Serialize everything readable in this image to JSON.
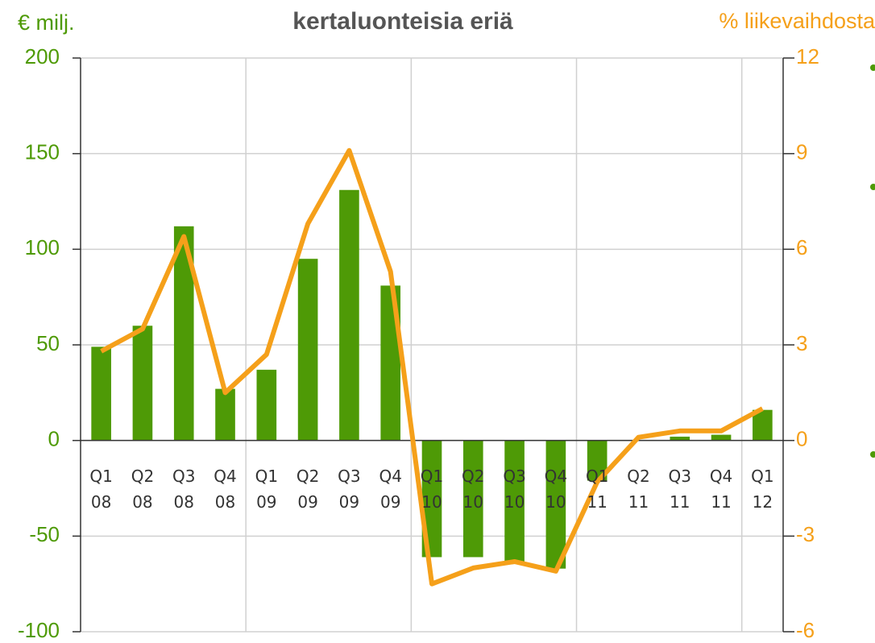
{
  "chart_data": {
    "type": "bar",
    "title": "kertaluonteisia eriä",
    "y_label": "€ milj.",
    "y2_label": "% liikevaihdosta",
    "categories": [
      "Q1 08",
      "Q2 08",
      "Q3 08",
      "Q4 08",
      "Q1 09",
      "Q2 09",
      "Q3 09",
      "Q4 09",
      "Q1 10",
      "Q2 10",
      "Q3 10",
      "Q4 10",
      "Q1 11",
      "Q2 11",
      "Q3 11",
      "Q4 11",
      "Q1 12"
    ],
    "series": [
      {
        "type": "bar",
        "color": "#4e9a06",
        "values": [
          49,
          60,
          112,
          27,
          37,
          95,
          131,
          81,
          -61,
          -61,
          -64,
          -67,
          -21,
          0,
          2,
          3,
          16
        ]
      },
      {
        "type": "line",
        "axis": "y2",
        "color": "#f5a01a",
        "values": [
          2.8,
          3.5,
          6.4,
          1.5,
          2.7,
          6.8,
          9.1,
          5.3,
          -4.5,
          -4.0,
          -3.8,
          -4.1,
          -1.3,
          0.1,
          0.3,
          0.3,
          1.0
        ]
      }
    ],
    "ylim": [
      -100,
      200
    ],
    "yticks": [
      200,
      150,
      100,
      50,
      0,
      -50,
      -100
    ],
    "y2lim": [
      -6,
      12
    ],
    "y2ticks": [
      12,
      9,
      6,
      3,
      0,
      -3,
      -6
    ],
    "grid": true
  }
}
